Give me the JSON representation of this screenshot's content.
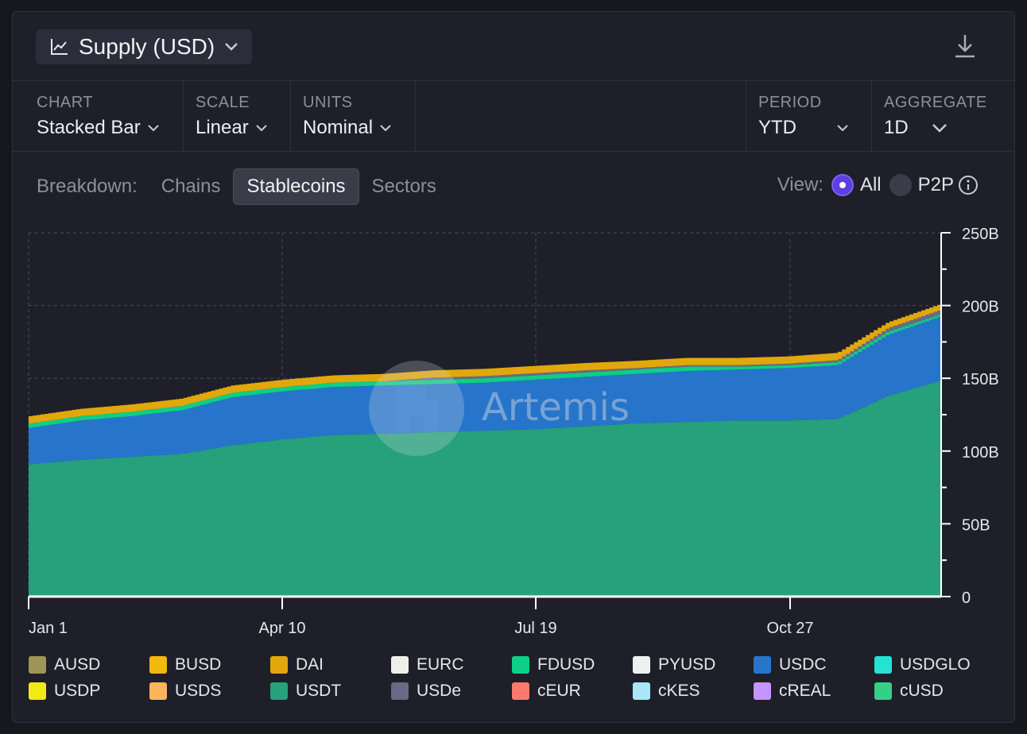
{
  "title": {
    "label": "Supply (USD)"
  },
  "controls": [
    {
      "label": "CHART",
      "value": "Stacked Bar"
    },
    {
      "label": "SCALE",
      "value": "Linear"
    },
    {
      "label": "UNITS",
      "value": "Nominal"
    },
    {
      "label": "PERIOD",
      "value": "YTD"
    },
    {
      "label": "AGGREGATE",
      "value": "1D"
    }
  ],
  "breakdown": {
    "label": "Breakdown:",
    "tabs": [
      "Chains",
      "Stablecoins",
      "Sectors"
    ],
    "active": "Stablecoins"
  },
  "view": {
    "label": "View:",
    "options": [
      "All",
      "P2P"
    ],
    "selected": "All"
  },
  "watermark": "Artemis",
  "chart_data": {
    "type": "bar",
    "stacked": true,
    "title": "Supply (USD)",
    "x_tick_labels": [
      "Jan 1",
      "Apr 10",
      "Jul 19",
      "Oct 27"
    ],
    "y_tick_labels": [
      "0",
      "50B",
      "100B",
      "150B",
      "200B",
      "250B"
    ],
    "ylim": [
      0,
      250
    ],
    "y_unit": "B",
    "x": [
      "Jan 1",
      "Jan 20",
      "Feb 10",
      "Mar 1",
      "Mar 20",
      "Apr 10",
      "May 1",
      "May 20",
      "Jun 10",
      "Jun 30",
      "Jul 19",
      "Aug 8",
      "Aug 28",
      "Sep 17",
      "Oct 7",
      "Oct 27",
      "Nov 15",
      "Dec 5",
      "Dec 24"
    ],
    "series": [
      {
        "name": "USDT",
        "color": "#26a17b",
        "values": [
          91,
          94,
          96,
          98,
          104,
          108,
          111,
          112,
          113,
          114,
          115,
          117,
          119,
          120,
          121,
          121,
          122,
          138,
          148
        ]
      },
      {
        "name": "USDC",
        "color": "#2775ca",
        "values": [
          25,
          27,
          28,
          30,
          33,
          33,
          33,
          33,
          33,
          33,
          34,
          34,
          34,
          35,
          35,
          36,
          37,
          42,
          44
        ]
      },
      {
        "name": "FDUSD",
        "color": "#0dcf86",
        "values": [
          3,
          3,
          3,
          3,
          3,
          3,
          3,
          3,
          3,
          3,
          3,
          3,
          3,
          3,
          2,
          2,
          2,
          2,
          1.5
        ]
      },
      {
        "name": "USDe",
        "color": "#6b6a86",
        "values": [
          0,
          0,
          0,
          0,
          0,
          0,
          0,
          0,
          1.5,
          1.5,
          1.5,
          1.5,
          1,
          1,
          1,
          1,
          1.5,
          2.5,
          3
        ]
      },
      {
        "name": "DAI",
        "color": "#e2a70a",
        "values": [
          5,
          5,
          5,
          5,
          5,
          5,
          5,
          5,
          5,
          5,
          5,
          5,
          5,
          5,
          5,
          5,
          5,
          4,
          4
        ]
      }
    ],
    "legend": [
      {
        "name": "AUSD",
        "color": "#9e9559"
      },
      {
        "name": "BUSD",
        "color": "#f0b90b"
      },
      {
        "name": "DAI",
        "color": "#e2a70a"
      },
      {
        "name": "EURC",
        "color": "#efefe9"
      },
      {
        "name": "FDUSD",
        "color": "#0dcf86"
      },
      {
        "name": "PYUSD",
        "color": "#eef1ef"
      },
      {
        "name": "USDC",
        "color": "#2775ca"
      },
      {
        "name": "USDGLO",
        "color": "#24e3d3"
      },
      {
        "name": "USDP",
        "color": "#f2ea14"
      },
      {
        "name": "USDS",
        "color": "#ffb45c"
      },
      {
        "name": "USDT",
        "color": "#26a17b"
      },
      {
        "name": "USDe",
        "color": "#6b6a86"
      },
      {
        "name": "cEUR",
        "color": "#fb7a6d"
      },
      {
        "name": "cKES",
        "color": "#a8e6f8"
      },
      {
        "name": "cREAL",
        "color": "#c495fb"
      },
      {
        "name": "cUSD",
        "color": "#35cf86"
      }
    ],
    "legend_position": "bottom"
  }
}
